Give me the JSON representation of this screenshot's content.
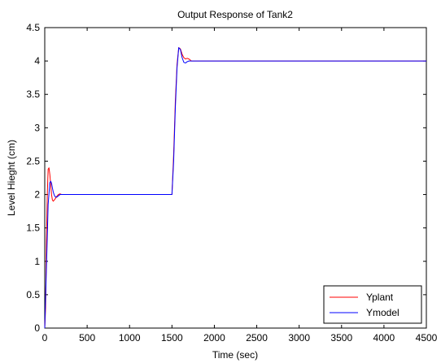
{
  "chart_data": {
    "type": "line",
    "title": "Output Response of Tank2",
    "xlabel": "Time (sec)",
    "ylabel": "Level Hieght (cm)",
    "xlim": [
      0,
      4500
    ],
    "ylim": [
      0,
      4.5
    ],
    "xticks": [
      0,
      500,
      1000,
      1500,
      2000,
      2500,
      3000,
      3500,
      4000,
      4500
    ],
    "yticks": [
      0,
      0.5,
      1,
      1.5,
      2,
      2.5,
      3,
      3.5,
      4,
      4.5
    ],
    "xtick_labels": [
      "0",
      "500",
      "1000",
      "1500",
      "2000",
      "2500",
      "3000",
      "3500",
      "4000",
      "4500"
    ],
    "ytick_labels": [
      "0",
      "0.5",
      "1",
      "1.5",
      "2",
      "2.5",
      "3",
      "3.5",
      "4",
      "4.5"
    ],
    "grid": false,
    "legend_position": "bottom-right",
    "series": [
      {
        "name": "Yplant",
        "color": "#ff0000",
        "x": [
          0,
          10,
          20,
          30,
          40,
          50,
          60,
          70,
          80,
          90,
          100,
          120,
          140,
          160,
          180,
          200,
          250,
          300,
          1500,
          1520,
          1540,
          1560,
          1580,
          1600,
          1620,
          1640,
          1660,
          1680,
          1700,
          1730,
          1800,
          4500
        ],
        "y": [
          0,
          0.3,
          1.3,
          2.0,
          2.38,
          2.4,
          2.3,
          2.15,
          2.0,
          1.92,
          1.9,
          1.93,
          1.97,
          2.0,
          2.01,
          2.0,
          2.0,
          2.0,
          2.0,
          2.6,
          3.4,
          3.95,
          4.2,
          4.18,
          4.1,
          4.05,
          4.03,
          4.04,
          4.03,
          4.0,
          4.0,
          4.0
        ]
      },
      {
        "name": "Ymodel",
        "color": "#0000ff",
        "x": [
          0,
          20,
          40,
          60,
          70,
          80,
          90,
          100,
          110,
          120,
          140,
          160,
          180,
          200,
          250,
          300,
          1500,
          1520,
          1540,
          1560,
          1580,
          1600,
          1620,
          1640,
          1660,
          1680,
          1700,
          1730,
          1800,
          4500
        ],
        "y": [
          0,
          0.9,
          1.85,
          2.18,
          2.2,
          2.17,
          2.1,
          2.04,
          2.0,
          1.97,
          1.96,
          1.98,
          2.0,
          2.0,
          2.0,
          2.0,
          2.0,
          2.5,
          3.3,
          3.9,
          4.2,
          4.17,
          4.05,
          3.98,
          3.97,
          3.99,
          4.0,
          4.0,
          4.0,
          4.0
        ]
      }
    ]
  }
}
